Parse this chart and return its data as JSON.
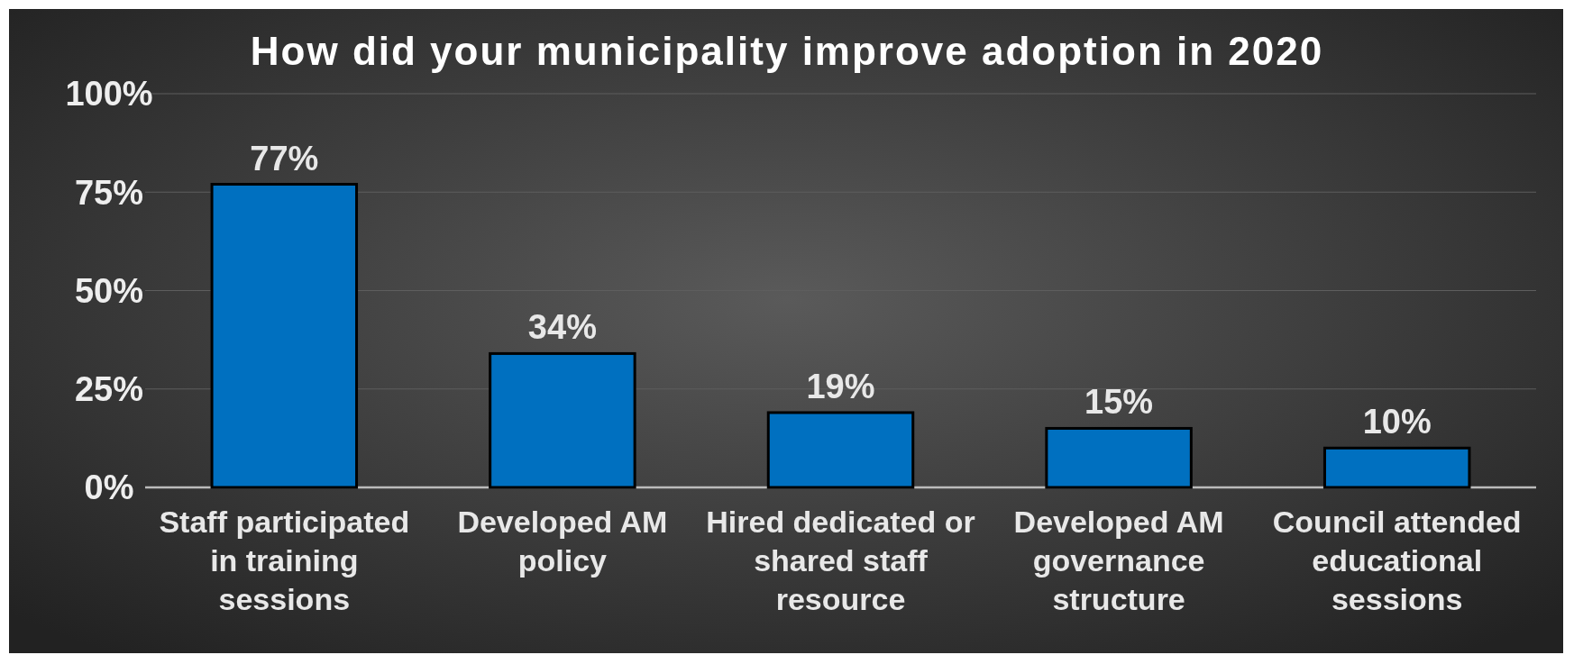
{
  "chart_data": {
    "type": "bar",
    "title": "How did your municipality improve adoption in 2020",
    "categories": [
      "Staff participated in training sessions",
      "Developed AM policy",
      "Hired dedicated or shared staff resource",
      "Developed AM governance structure",
      "Council attended educational sessions"
    ],
    "values": [
      77,
      34,
      19,
      15,
      10
    ],
    "value_labels": [
      "77%",
      "34%",
      "19%",
      "15%",
      "10%"
    ],
    "color": "#0070c0",
    "ylim": [
      0,
      100
    ],
    "yticks": [
      {
        "value": 0,
        "label": "0%"
      },
      {
        "value": 25,
        "label": "25%"
      },
      {
        "value": 50,
        "label": "50%"
      },
      {
        "value": 75,
        "label": "75%"
      },
      {
        "value": 100,
        "label": "100%"
      }
    ],
    "grid": "y"
  }
}
